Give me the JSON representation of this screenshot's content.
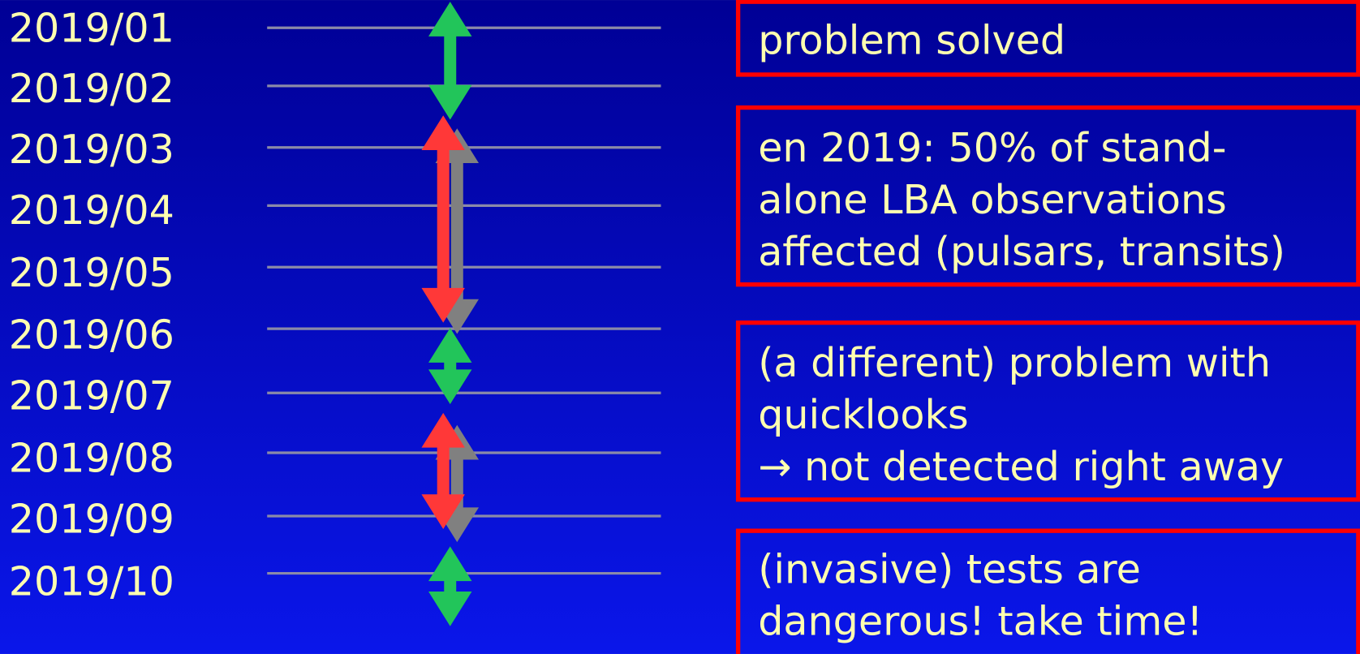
{
  "timeline": {
    "months": [
      "2019/01",
      "2019/02",
      "2019/03",
      "2019/04",
      "2019/05",
      "2019/06",
      "2019/07",
      "2019/08",
      "2019/09",
      "2019/10"
    ]
  },
  "boxes": [
    {
      "lines": [
        "problem solved"
      ]
    },
    {
      "lines": [
        "en 2019: 50% of stand-",
        "alone LBA observations",
        "affected (pulsars, transits)"
      ]
    },
    {
      "lines": [
        "(a different) problem with",
        "quicklooks",
        "→ not detected right away"
      ]
    },
    {
      "lines": [
        "(invasive) tests are",
        "dangerous! take time!"
      ]
    }
  ]
}
